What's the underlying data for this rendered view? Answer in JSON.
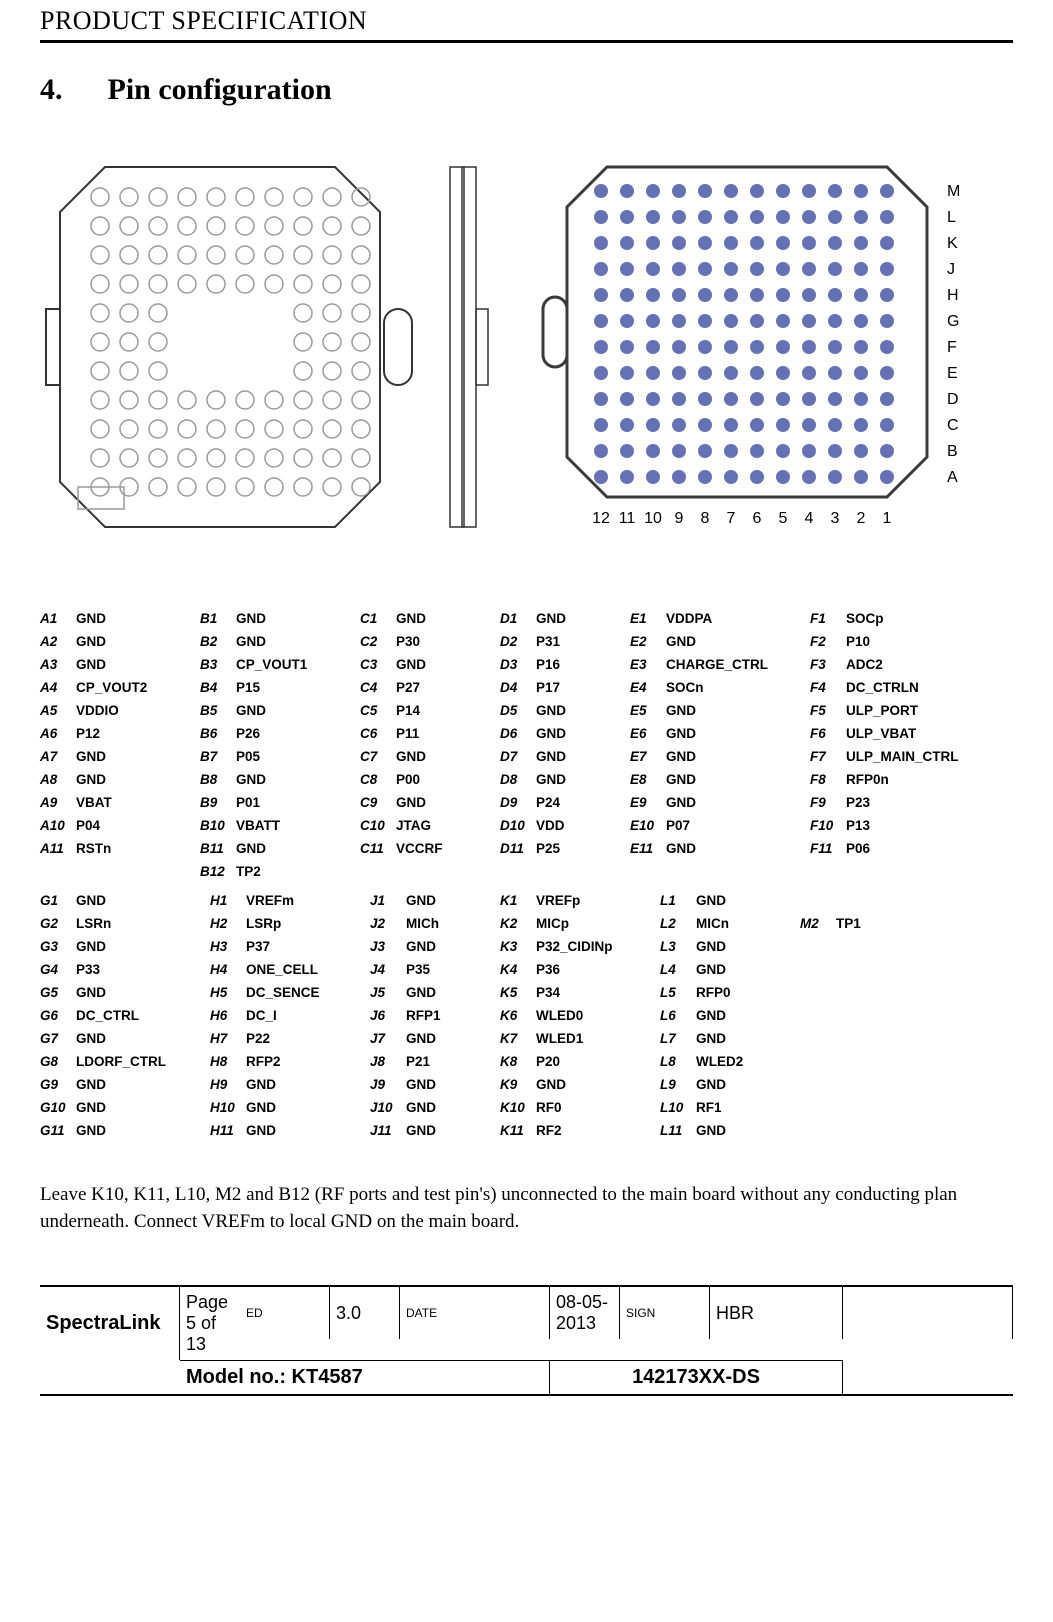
{
  "header": {
    "title": "PRODUCT SPECIFICATION"
  },
  "section": {
    "number": "4.",
    "title": "Pin configuration"
  },
  "diagram_left": {
    "rows": 11,
    "cols": 10,
    "gap_rows": [
      4,
      5,
      6
    ],
    "gap_cols": [
      3,
      4,
      5,
      6
    ],
    "stroke": "#9a9a9a",
    "fill": "#ffffff",
    "outer_stroke": "#333"
  },
  "diagram_right": {
    "rows": 12,
    "cols": 12,
    "row_labels": [
      "A",
      "B",
      "C",
      "D",
      "E",
      "F",
      "G",
      "H",
      "J",
      "K",
      "L",
      "M"
    ],
    "col_labels": [
      "12",
      "11",
      "10",
      "9",
      "8",
      "7",
      "6",
      "5",
      "4",
      "3",
      "2",
      "1"
    ],
    "dot_fill": "#6472b4",
    "outline": "#3a3a3a"
  },
  "pins": {
    "A": [
      [
        "A1",
        "GND"
      ],
      [
        "A2",
        "GND"
      ],
      [
        "A3",
        "GND"
      ],
      [
        "A4",
        "CP_VOUT2"
      ],
      [
        "A5",
        "VDDIO"
      ],
      [
        "A6",
        "P12"
      ],
      [
        "A7",
        "GND"
      ],
      [
        "A8",
        "GND"
      ],
      [
        "A9",
        "VBAT"
      ],
      [
        "A10",
        "P04"
      ],
      [
        "A11",
        "RSTn"
      ]
    ],
    "B": [
      [
        "B1",
        "GND"
      ],
      [
        "B2",
        "GND"
      ],
      [
        "B3",
        "CP_VOUT1"
      ],
      [
        "B4",
        "P15"
      ],
      [
        "B5",
        "GND"
      ],
      [
        "B6",
        "P26"
      ],
      [
        "B7",
        "P05"
      ],
      [
        "B8",
        "GND"
      ],
      [
        "B9",
        "P01"
      ],
      [
        "B10",
        "VBATT"
      ],
      [
        "B11",
        "GND"
      ],
      [
        "B12",
        "TP2"
      ]
    ],
    "C": [
      [
        "C1",
        "GND"
      ],
      [
        "C2",
        "P30"
      ],
      [
        "C3",
        "GND"
      ],
      [
        "C4",
        "P27"
      ],
      [
        "C5",
        "P14"
      ],
      [
        "C6",
        "P11"
      ],
      [
        "C7",
        "GND"
      ],
      [
        "C8",
        "P00"
      ],
      [
        "C9",
        "GND"
      ],
      [
        "C10",
        "JTAG"
      ],
      [
        "C11",
        "VCCRF"
      ]
    ],
    "D": [
      [
        "D1",
        "GND"
      ],
      [
        "D2",
        "P31"
      ],
      [
        "D3",
        "P16"
      ],
      [
        "D4",
        "P17"
      ],
      [
        "D5",
        "GND"
      ],
      [
        "D6",
        "GND"
      ],
      [
        "D7",
        "GND"
      ],
      [
        "D8",
        "GND"
      ],
      [
        "D9",
        "P24"
      ],
      [
        "D10",
        "VDD"
      ],
      [
        "D11",
        "P25"
      ]
    ],
    "E": [
      [
        "E1",
        "VDDPA"
      ],
      [
        "E2",
        "GND"
      ],
      [
        "E3",
        "CHARGE_CTRL"
      ],
      [
        "E4",
        "SOCn"
      ],
      [
        "E5",
        "GND"
      ],
      [
        "E6",
        "GND"
      ],
      [
        "E7",
        "GND"
      ],
      [
        "E8",
        "GND"
      ],
      [
        "E9",
        "GND"
      ],
      [
        "E10",
        "P07"
      ],
      [
        "E11",
        "GND"
      ]
    ],
    "F": [
      [
        "F1",
        "SOCp"
      ],
      [
        "F2",
        "P10"
      ],
      [
        "F3",
        "ADC2"
      ],
      [
        "F4",
        "DC_CTRLN"
      ],
      [
        "F5",
        "ULP_PORT"
      ],
      [
        "F6",
        "ULP_VBAT"
      ],
      [
        "F7",
        "ULP_MAIN_CTRL"
      ],
      [
        "F8",
        "RFP0n"
      ],
      [
        "F9",
        "P23"
      ],
      [
        "F10",
        "P13"
      ],
      [
        "F11",
        "P06"
      ]
    ],
    "G": [
      [
        "G1",
        "GND"
      ],
      [
        "G2",
        "LSRn"
      ],
      [
        "G3",
        "GND"
      ],
      [
        "G4",
        "P33"
      ],
      [
        "G5",
        "GND"
      ],
      [
        "G6",
        "DC_CTRL"
      ],
      [
        "G7",
        "GND"
      ],
      [
        "G8",
        "LDORF_CTRL"
      ],
      [
        "G9",
        "GND"
      ],
      [
        "G10",
        "GND"
      ],
      [
        "G11",
        "GND"
      ]
    ],
    "H": [
      [
        "H1",
        "VREFm"
      ],
      [
        "H2",
        "LSRp"
      ],
      [
        "H3",
        "P37"
      ],
      [
        "H4",
        "ONE_CELL"
      ],
      [
        "H5",
        "DC_SENCE"
      ],
      [
        "H6",
        "DC_I"
      ],
      [
        "H7",
        "P22"
      ],
      [
        "H8",
        "RFP2"
      ],
      [
        "H9",
        "GND"
      ],
      [
        "H10",
        "GND"
      ],
      [
        "H11",
        "GND"
      ]
    ],
    "J": [
      [
        "J1",
        "GND"
      ],
      [
        "J2",
        "MICh"
      ],
      [
        "J3",
        "GND"
      ],
      [
        "J4",
        "P35"
      ],
      [
        "J5",
        "GND"
      ],
      [
        "J6",
        "RFP1"
      ],
      [
        "J7",
        "GND"
      ],
      [
        "J8",
        "P21"
      ],
      [
        "J9",
        "GND"
      ],
      [
        "J10",
        "GND"
      ],
      [
        "J11",
        "GND"
      ]
    ],
    "K": [
      [
        "K1",
        "VREFp"
      ],
      [
        "K2",
        "MICp"
      ],
      [
        "K3",
        "P32_CIDINp"
      ],
      [
        "K4",
        "P36"
      ],
      [
        "K5",
        "P34"
      ],
      [
        "K6",
        "WLED0"
      ],
      [
        "K7",
        "WLED1"
      ],
      [
        "K8",
        "P20"
      ],
      [
        "K9",
        "GND"
      ],
      [
        "K10",
        "RF0"
      ],
      [
        "K11",
        "RF2"
      ]
    ],
    "L": [
      [
        "L1",
        "GND"
      ],
      [
        "L2",
        "MICn"
      ],
      [
        "L3",
        "GND"
      ],
      [
        "L4",
        "GND"
      ],
      [
        "L5",
        "RFP0"
      ],
      [
        "L6",
        "GND"
      ],
      [
        "L7",
        "GND"
      ],
      [
        "L8",
        "WLED2"
      ],
      [
        "L9",
        "GND"
      ],
      [
        "L10",
        "RF1"
      ],
      [
        "L11",
        "GND"
      ]
    ],
    "M": [
      [
        "",
        ""
      ],
      [
        "M2",
        "TP1"
      ]
    ]
  },
  "pin_col_widths": {
    "A": 120,
    "B": 120,
    "C": 100,
    "D": 90,
    "E": 140,
    "F": 140,
    "G": 130,
    "H": 120,
    "J": 90,
    "K": 120,
    "L": 100,
    "M": 80
  },
  "note": "Leave K10, K11, L10, M2 and B12 (RF ports and test pin's) unconnected to the main board without any conducting plan underneath.  Connect VREFm to local GND on the main board.",
  "footer": {
    "brand": "SpectraLink",
    "ed_label": "ED",
    "ed": "3.0",
    "date_label": "DATE",
    "date": "08-05-2013",
    "sign_label": "SIGN",
    "sign": "HBR",
    "page": "Page 5 of 13",
    "model_label": "Model no.:  KT4587",
    "partno": "142173XX-DS"
  }
}
